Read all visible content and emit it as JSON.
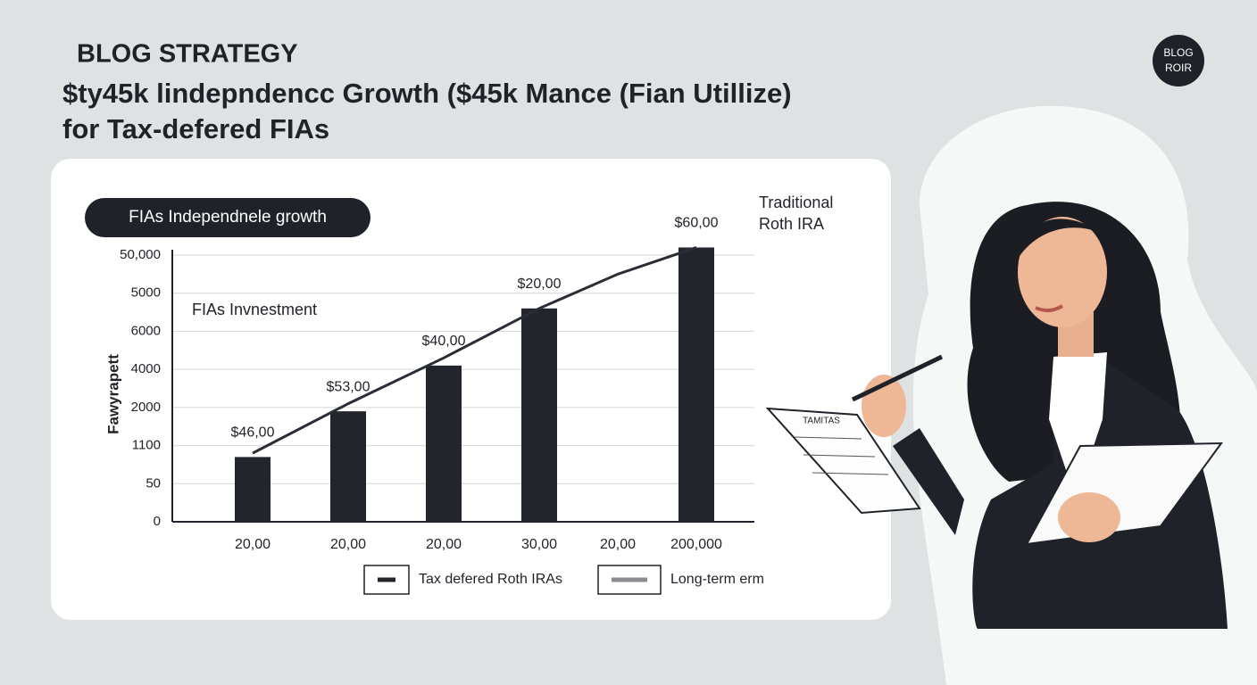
{
  "header": {
    "kicker": "BLOG STRATEGY",
    "title_lines": [
      "$ty45k lindepndencc Growth ($45k Mance (Fian Utillize)",
      "for Tax-defered FIAs"
    ]
  },
  "badge": [
    "BLOG",
    "ROIR"
  ],
  "document_label": "TAMITAS",
  "chart_data": {
    "type": "bar",
    "title": "FIAs Independnele growth",
    "annotation": "FIAs Invnestment",
    "side_note": [
      "Traditional",
      "Roth IRA"
    ],
    "y_label": "Fawyrapett",
    "categories": [
      "20,00",
      "20,00",
      "20,00",
      "30,00",
      "20,00",
      "200,000"
    ],
    "series": [
      {
        "name": "Tax defered Roth IRAs",
        "type": "bar",
        "color": "#22252c",
        "values": [
          1.7,
          2.9,
          4.1,
          5.6,
          null,
          7.2
        ],
        "value_labels": [
          "$46,00",
          "$53,00",
          "$40,00",
          "$20,00",
          null,
          "$60,00"
        ]
      },
      {
        "name": "Long-term erm",
        "type": "line",
        "color": "#2a2d35",
        "legend_color": "#8a8c90",
        "values": [
          1.8,
          3.1,
          4.3,
          5.6,
          6.5,
          7.2
        ]
      }
    ],
    "ylim": [
      0,
      7.3
    ],
    "yticks": [
      {
        "value": 0,
        "label": "0"
      },
      {
        "value": 1,
        "label": "50"
      },
      {
        "value": 2,
        "label": "1100"
      },
      {
        "value": 3,
        "label": "2000"
      },
      {
        "value": 4,
        "label": "4000"
      },
      {
        "value": 5,
        "label": "6000"
      },
      {
        "value": 6,
        "label": "5000"
      },
      {
        "value": 7,
        "label": "50,000"
      }
    ],
    "grid": true
  }
}
